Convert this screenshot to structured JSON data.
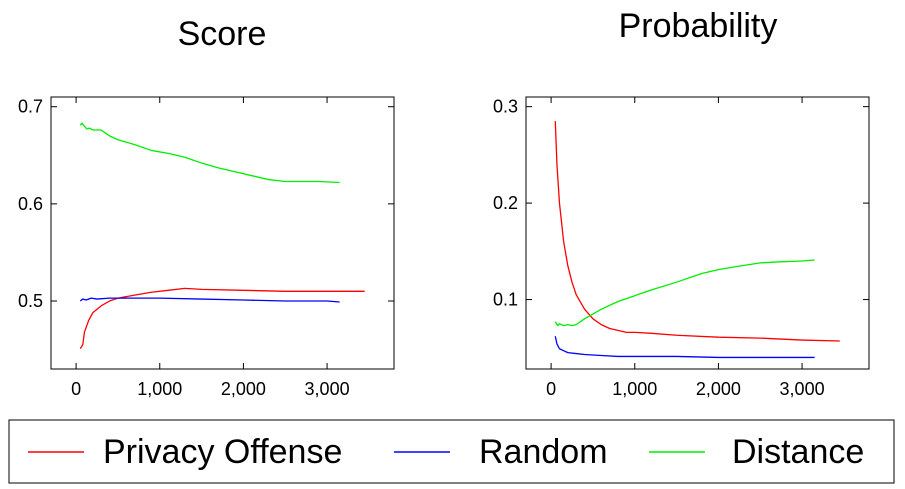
{
  "chart_data": [
    {
      "type": "line",
      "title": "Score",
      "xlabel": "",
      "ylabel": "",
      "xlim": [
        -300,
        3800
      ],
      "ylim": [
        0.43,
        0.71
      ],
      "xticks": [
        0,
        1000,
        2000,
        3000
      ],
      "xtick_labels": [
        "0",
        "1,000",
        "2,000",
        "3,000"
      ],
      "yticks": [
        0.5,
        0.6,
        0.7
      ],
      "ytick_labels": [
        "0.5",
        "0.6",
        "0.7"
      ],
      "grid": false,
      "series": [
        {
          "name": "Privacy Offense",
          "color": "#ff0000",
          "x": [
            50,
            80,
            100,
            150,
            200,
            300,
            400,
            500,
            700,
            900,
            1100,
            1300,
            1500,
            2000,
            2500,
            3000,
            3450
          ],
          "y": [
            0.451,
            0.455,
            0.468,
            0.48,
            0.488,
            0.495,
            0.5,
            0.503,
            0.506,
            0.509,
            0.511,
            0.513,
            0.512,
            0.511,
            0.51,
            0.51,
            0.51
          ]
        },
        {
          "name": "Random",
          "color": "#0000ff",
          "x": [
            50,
            80,
            120,
            180,
            250,
            400,
            600,
            800,
            1000,
            1500,
            2000,
            2500,
            3000,
            3150
          ],
          "y": [
            0.5,
            0.502,
            0.501,
            0.503,
            0.502,
            0.503,
            0.503,
            0.503,
            0.503,
            0.502,
            0.501,
            0.5,
            0.5,
            0.499
          ]
        },
        {
          "name": "Distance",
          "color": "#00ee00",
          "x": [
            50,
            70,
            100,
            130,
            160,
            200,
            300,
            400,
            500,
            700,
            900,
            1100,
            1300,
            1500,
            1700,
            1900,
            2100,
            2300,
            2500,
            2700,
            2900,
            3150
          ],
          "y": [
            0.681,
            0.683,
            0.68,
            0.677,
            0.678,
            0.676,
            0.676,
            0.67,
            0.666,
            0.661,
            0.655,
            0.652,
            0.648,
            0.642,
            0.637,
            0.633,
            0.629,
            0.625,
            0.623,
            0.623,
            0.623,
            0.622
          ]
        }
      ]
    },
    {
      "type": "line",
      "title": "Probability",
      "xlabel": "",
      "ylabel": "",
      "xlim": [
        -300,
        3800
      ],
      "ylim": [
        0.028,
        0.31
      ],
      "xticks": [
        0,
        1000,
        2000,
        3000
      ],
      "xtick_labels": [
        "0",
        "1,000",
        "2,000",
        "3,000"
      ],
      "yticks": [
        0.1,
        0.2,
        0.3
      ],
      "ytick_labels": [
        "0.1",
        "0.2",
        "0.3"
      ],
      "grid": false,
      "series": [
        {
          "name": "Privacy Offense",
          "color": "#ff0000",
          "x": [
            50,
            70,
            100,
            150,
            200,
            250,
            300,
            400,
            500,
            600,
            700,
            800,
            900,
            1000,
            1200,
            1500,
            2000,
            2500,
            3000,
            3450
          ],
          "y": [
            0.285,
            0.24,
            0.2,
            0.16,
            0.135,
            0.118,
            0.105,
            0.09,
            0.08,
            0.074,
            0.07,
            0.068,
            0.066,
            0.066,
            0.065,
            0.063,
            0.061,
            0.06,
            0.058,
            0.057
          ]
        },
        {
          "name": "Random",
          "color": "#0000ff",
          "x": [
            50,
            70,
            100,
            150,
            200,
            300,
            400,
            600,
            800,
            1000,
            1500,
            2000,
            2500,
            3000,
            3150
          ],
          "y": [
            0.062,
            0.054,
            0.049,
            0.047,
            0.045,
            0.044,
            0.043,
            0.042,
            0.041,
            0.041,
            0.041,
            0.04,
            0.04,
            0.04,
            0.04
          ]
        },
        {
          "name": "Distance",
          "color": "#00ee00",
          "x": [
            50,
            80,
            100,
            150,
            200,
            250,
            300,
            400,
            500,
            600,
            800,
            1000,
            1200,
            1500,
            1800,
            2000,
            2200,
            2500,
            2700,
            3000,
            3150
          ],
          "y": [
            0.077,
            0.073,
            0.075,
            0.073,
            0.074,
            0.073,
            0.074,
            0.08,
            0.085,
            0.09,
            0.098,
            0.104,
            0.11,
            0.118,
            0.127,
            0.131,
            0.134,
            0.138,
            0.139,
            0.14,
            0.141
          ]
        }
      ]
    }
  ],
  "legend": {
    "placement": "bottom",
    "items": [
      {
        "label": "Privacy Offense",
        "color": "#ff0000"
      },
      {
        "label": "Random",
        "color": "#0000ff"
      },
      {
        "label": "Distance",
        "color": "#00ee00"
      }
    ]
  }
}
